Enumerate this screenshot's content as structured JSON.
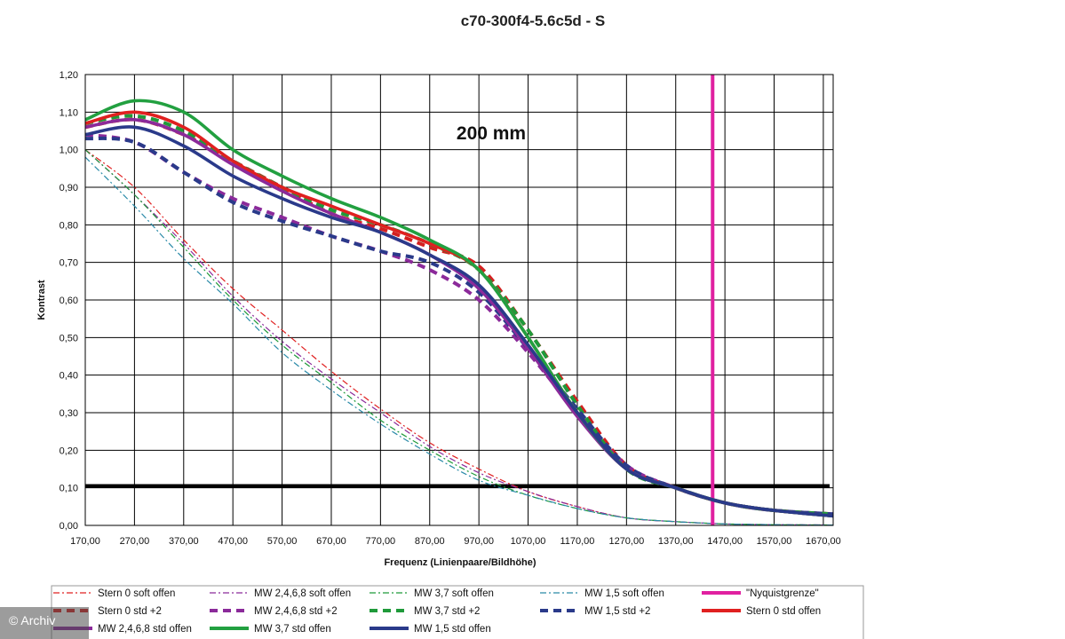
{
  "chart_data": {
    "type": "line",
    "title": "c70-300f4-5.6c5d - S",
    "xlabel": "Frequenz (Linienpaare/Bildhöhe)",
    "ylabel": "Kontrast",
    "annotation": "200 mm",
    "xlim": [
      170,
      1690
    ],
    "ylim": [
      0,
      1.2
    ],
    "x_ticks": [
      "170,00",
      "270,00",
      "370,00",
      "470,00",
      "570,00",
      "670,00",
      "770,00",
      "870,00",
      "970,00",
      "1070,00",
      "1170,00",
      "1270,00",
      "1370,00",
      "1470,00",
      "1570,00",
      "1670,00"
    ],
    "y_ticks": [
      "0,00",
      "0,10",
      "0,20",
      "0,30",
      "0,40",
      "0,50",
      "0,60",
      "0,70",
      "0,80",
      "0,90",
      "1,00",
      "1,10",
      "1,20"
    ],
    "grid": true,
    "legend_position": "bottom",
    "threshold_line": {
      "y": 0.105,
      "color": "#000000"
    },
    "series": [
      {
        "name": "Stern 0 soft offen",
        "color": "#e02020",
        "style": "dashdot-thin",
        "x": [
          170,
          270,
          370,
          470,
          570,
          670,
          770,
          870,
          970,
          1070,
          1170,
          1270,
          1370,
          1470,
          1570,
          1690
        ],
        "y": [
          1.0,
          0.9,
          0.76,
          0.63,
          0.52,
          0.41,
          0.31,
          0.22,
          0.15,
          0.09,
          0.05,
          0.02,
          0.01,
          0.004,
          0.002,
          0.001
        ]
      },
      {
        "name": "MW 2,4,6,8 soft offen",
        "color": "#8b2a9a",
        "style": "dashdot-thin",
        "x": [
          170,
          270,
          370,
          470,
          570,
          670,
          770,
          870,
          970,
          1070,
          1170,
          1270,
          1370,
          1470,
          1570,
          1690
        ],
        "y": [
          1.0,
          0.88,
          0.75,
          0.61,
          0.49,
          0.39,
          0.3,
          0.21,
          0.14,
          0.09,
          0.05,
          0.02,
          0.01,
          0.004,
          0.002,
          0.001
        ]
      },
      {
        "name": "MW 3,7 soft offen",
        "color": "#1f9a3a",
        "style": "dashdot-thin",
        "x": [
          170,
          270,
          370,
          470,
          570,
          670,
          770,
          870,
          970,
          1070,
          1170,
          1270,
          1370,
          1470,
          1570,
          1690
        ],
        "y": [
          1.0,
          0.88,
          0.74,
          0.6,
          0.48,
          0.38,
          0.28,
          0.2,
          0.13,
          0.08,
          0.045,
          0.02,
          0.01,
          0.004,
          0.002,
          0.001
        ]
      },
      {
        "name": "MW 1,5 soft offen",
        "color": "#2a8aa8",
        "style": "dashdot-thin",
        "x": [
          170,
          270,
          370,
          470,
          570,
          670,
          770,
          870,
          970,
          1070,
          1170,
          1270,
          1370,
          1470,
          1570,
          1690
        ],
        "y": [
          0.98,
          0.85,
          0.71,
          0.59,
          0.46,
          0.36,
          0.27,
          0.19,
          0.12,
          0.08,
          0.045,
          0.02,
          0.01,
          0.004,
          0.002,
          0.001
        ]
      },
      {
        "name": "\"Nyquistgrenze\"",
        "color": "#e020a0",
        "style": "vertical",
        "x": [
          1445,
          1445
        ],
        "y": [
          0,
          1.2
        ]
      },
      {
        "name": "Stern 0 std +2",
        "color": "#d42020",
        "style": "dashed-thick",
        "x": [
          170,
          270,
          370,
          470,
          570,
          670,
          770,
          870,
          970,
          1070,
          1170,
          1270,
          1370,
          1470,
          1570,
          1690
        ],
        "y": [
          1.06,
          1.08,
          1.04,
          0.97,
          0.9,
          0.83,
          0.79,
          0.74,
          0.69,
          0.52,
          0.33,
          0.16,
          0.1,
          0.06,
          0.04,
          0.03
        ]
      },
      {
        "name": "MW 2,4,6,8 std +2",
        "color": "#8b2a9a",
        "style": "dashed-thick",
        "x": [
          170,
          270,
          370,
          470,
          570,
          670,
          770,
          870,
          970,
          1070,
          1170,
          1270,
          1370,
          1470,
          1570,
          1690
        ],
        "y": [
          1.04,
          1.02,
          0.94,
          0.87,
          0.82,
          0.77,
          0.73,
          0.68,
          0.6,
          0.46,
          0.3,
          0.16,
          0.1,
          0.06,
          0.04,
          0.03
        ]
      },
      {
        "name": "MW 3,7 std +2",
        "color": "#1f9a3a",
        "style": "dashed-thick",
        "x": [
          170,
          270,
          370,
          470,
          570,
          670,
          770,
          870,
          970,
          1070,
          1170,
          1270,
          1370,
          1470,
          1570,
          1690
        ],
        "y": [
          1.07,
          1.09,
          1.05,
          0.97,
          0.9,
          0.84,
          0.8,
          0.75,
          0.68,
          0.52,
          0.32,
          0.15,
          0.1,
          0.06,
          0.04,
          0.03
        ]
      },
      {
        "name": "MW 1,5 std +2",
        "color": "#2a3a8a",
        "style": "dashed-thick",
        "x": [
          170,
          270,
          370,
          470,
          570,
          670,
          770,
          870,
          970,
          1070,
          1170,
          1270,
          1370,
          1470,
          1570,
          1690
        ],
        "y": [
          1.03,
          1.02,
          0.94,
          0.86,
          0.81,
          0.77,
          0.73,
          0.7,
          0.62,
          0.47,
          0.31,
          0.16,
          0.1,
          0.06,
          0.04,
          0.03
        ]
      },
      {
        "name": "Stern 0 std offen",
        "color": "#e02020",
        "style": "solid-thick",
        "x": [
          170,
          270,
          370,
          470,
          570,
          670,
          770,
          870,
          970,
          1070,
          1170,
          1270,
          1370,
          1470,
          1570,
          1690
        ],
        "y": [
          1.07,
          1.1,
          1.06,
          0.97,
          0.9,
          0.85,
          0.8,
          0.75,
          0.68,
          0.5,
          0.3,
          0.15,
          0.1,
          0.06,
          0.04,
          0.025
        ]
      },
      {
        "name": "MW 2,4,6,8 std offen",
        "color": "#8b2a9a",
        "style": "solid-thick",
        "x": [
          170,
          270,
          370,
          470,
          570,
          670,
          770,
          870,
          970,
          1070,
          1170,
          1270,
          1370,
          1470,
          1570,
          1690
        ],
        "y": [
          1.06,
          1.08,
          1.04,
          0.96,
          0.89,
          0.83,
          0.78,
          0.72,
          0.63,
          0.47,
          0.29,
          0.15,
          0.1,
          0.06,
          0.04,
          0.025
        ]
      },
      {
        "name": "MW 3,7 std offen",
        "color": "#22a040",
        "style": "solid-thick",
        "x": [
          170,
          270,
          370,
          470,
          570,
          670,
          770,
          870,
          970,
          1070,
          1170,
          1270,
          1370,
          1470,
          1570,
          1690
        ],
        "y": [
          1.08,
          1.13,
          1.1,
          1.0,
          0.93,
          0.87,
          0.82,
          0.76,
          0.68,
          0.5,
          0.3,
          0.15,
          0.1,
          0.06,
          0.04,
          0.025
        ]
      },
      {
        "name": "MW 1,5 std offen",
        "color": "#2a3a8a",
        "style": "solid-thick",
        "x": [
          170,
          270,
          370,
          470,
          570,
          670,
          770,
          870,
          970,
          1070,
          1170,
          1270,
          1370,
          1470,
          1570,
          1690
        ],
        "y": [
          1.04,
          1.06,
          1.01,
          0.93,
          0.87,
          0.82,
          0.78,
          0.72,
          0.64,
          0.48,
          0.3,
          0.15,
          0.1,
          0.06,
          0.04,
          0.025
        ]
      }
    ]
  },
  "watermark": "© Archiv"
}
